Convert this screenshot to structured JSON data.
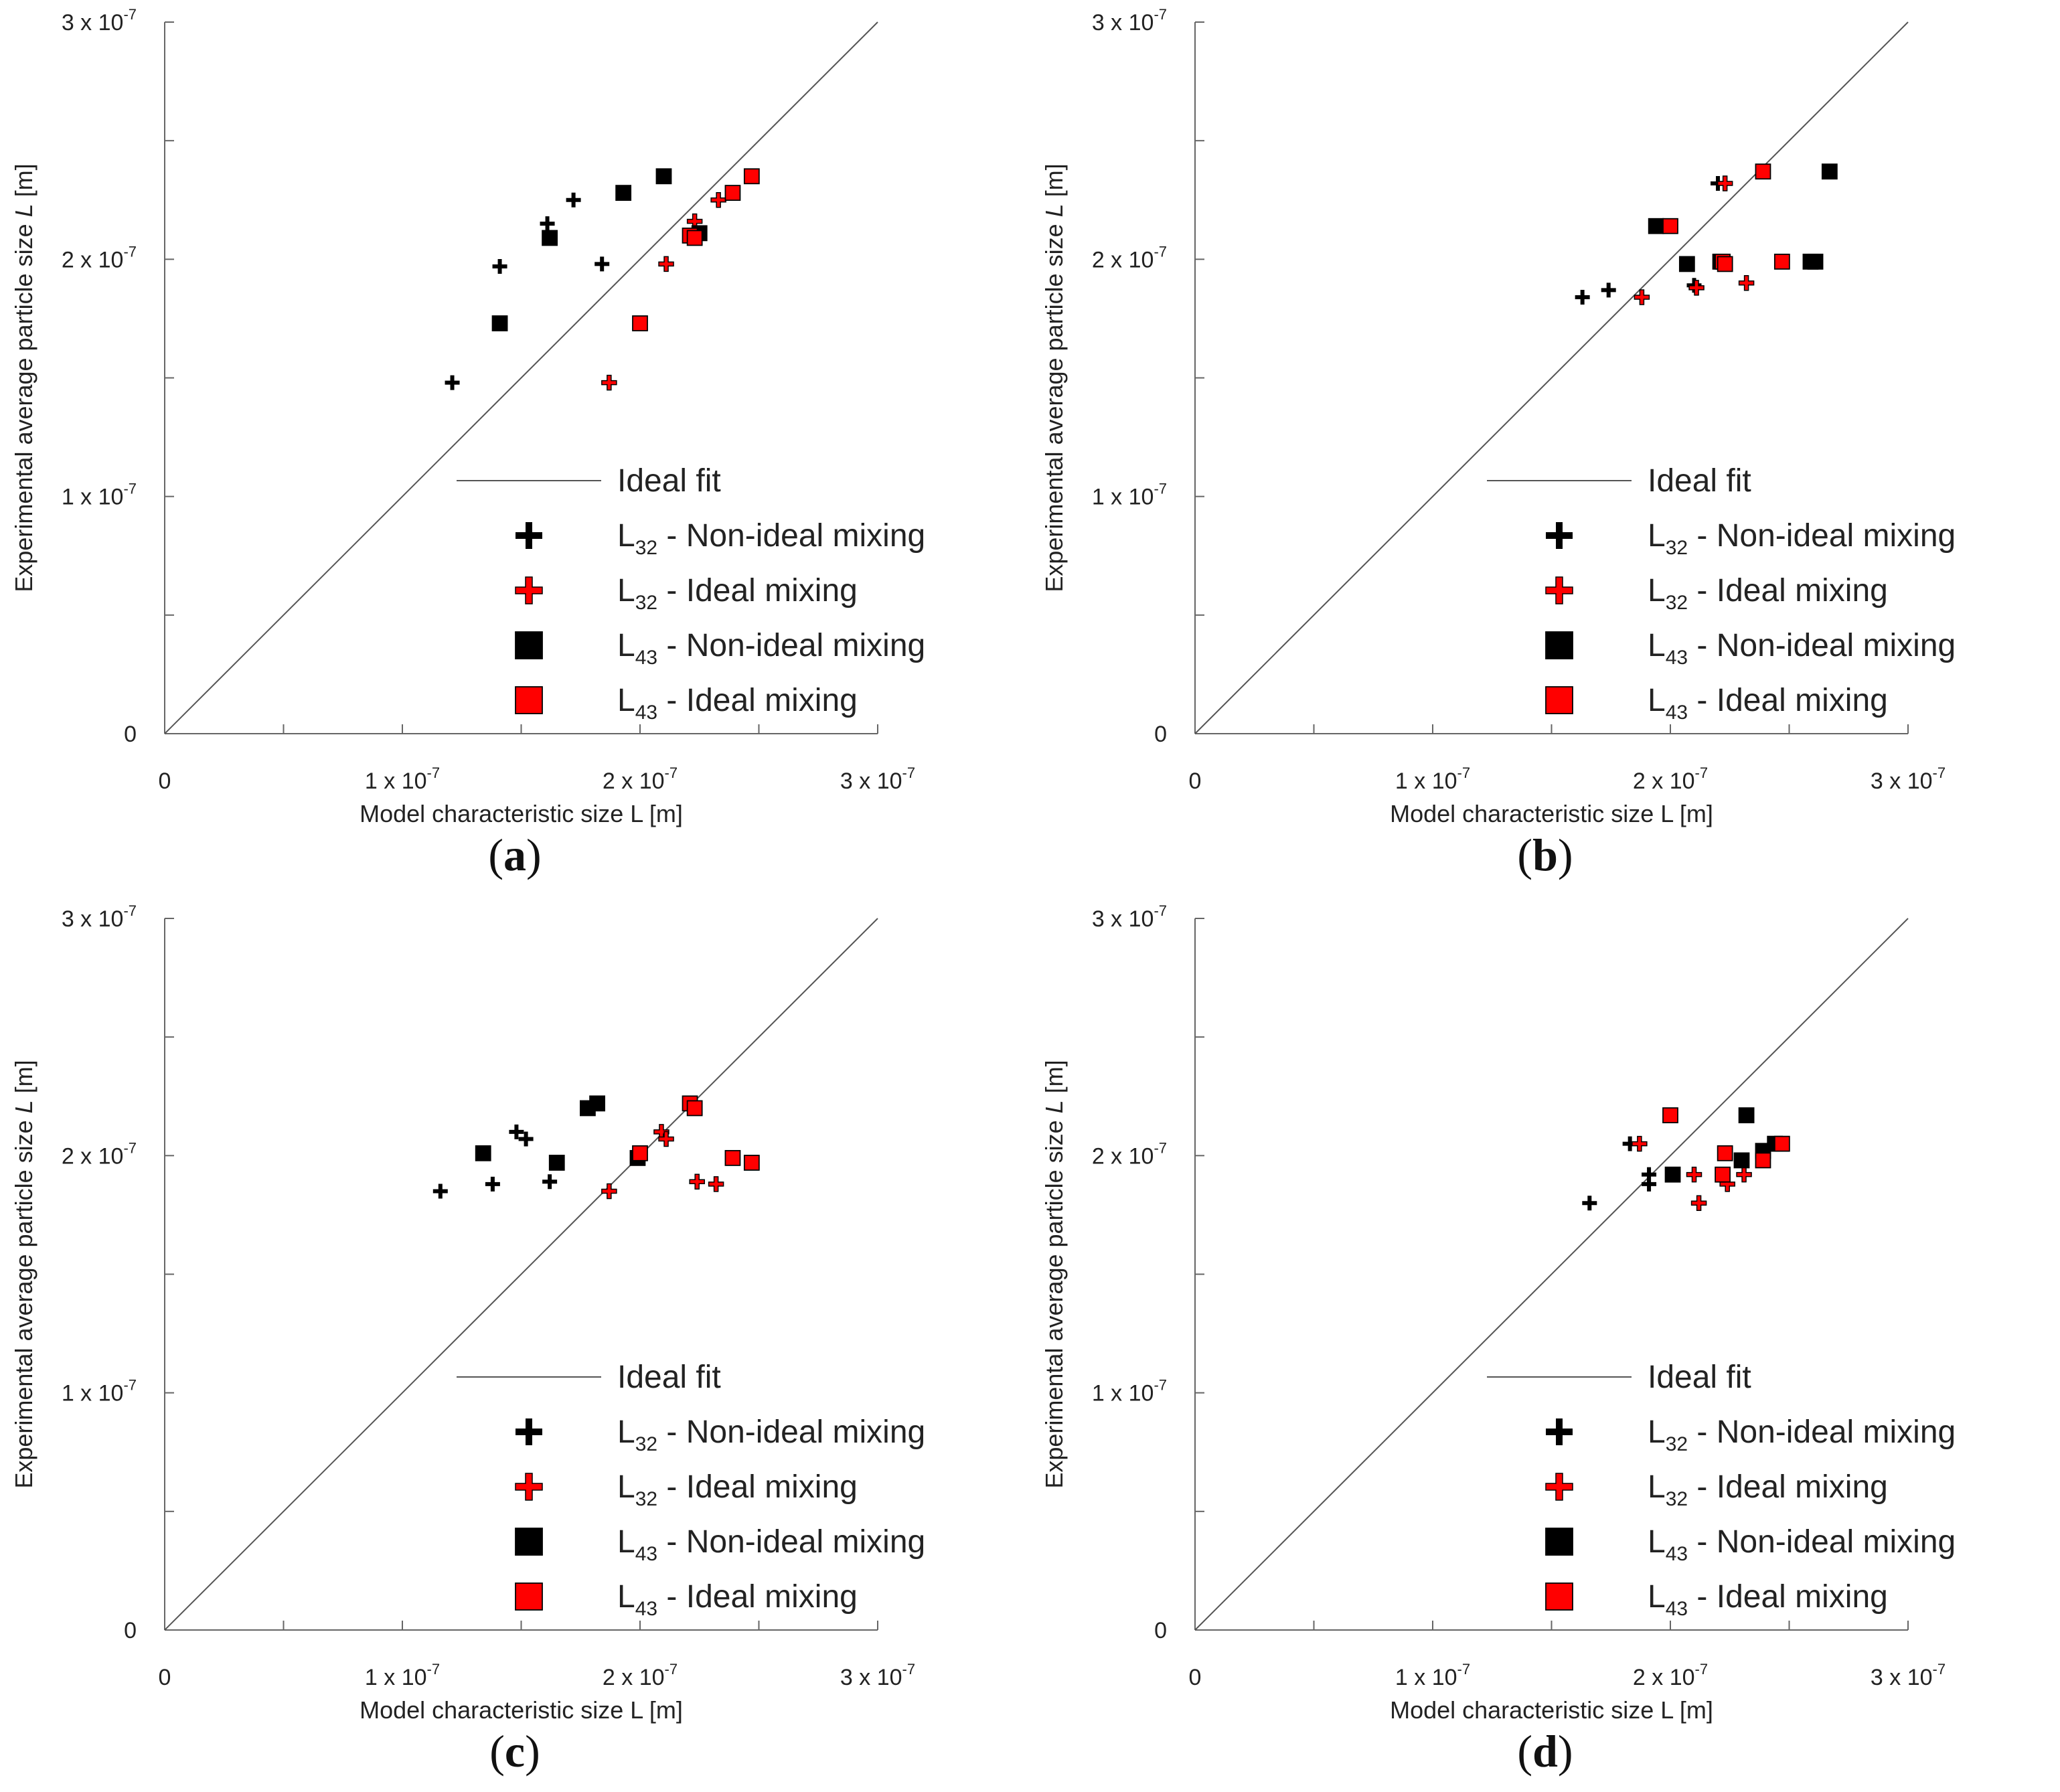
{
  "colors": {
    "non_ideal": "#000000",
    "ideal": "#ff0000",
    "fit_line": "#555555",
    "axis": "#666666"
  },
  "chart_data": [
    {
      "type": "scatter",
      "panel_label": "a",
      "xlabel": "Model characteristic size L [m]",
      "ylabel_prefix": "Experimental average particle size ",
      "ylabel_symbol": "L",
      "ylabel_suffix": " [m]",
      "xlim": [
        0,
        3e-07
      ],
      "ylim": [
        0,
        3e-07
      ],
      "x_ticks": [
        {
          "value": 0,
          "label": "0",
          "exp": ""
        },
        {
          "value": 1e-07,
          "label": "1 x 10",
          "exp": "-7"
        },
        {
          "value": 2e-07,
          "label": "2 x 10",
          "exp": "-7"
        },
        {
          "value": 3e-07,
          "label": "3 x 10",
          "exp": "-7"
        }
      ],
      "y_ticks": [
        {
          "value": 0,
          "label": "0",
          "exp": ""
        },
        {
          "value": 1e-07,
          "label": "1 x 10",
          "exp": "-7"
        },
        {
          "value": 2e-07,
          "label": "2 x 10",
          "exp": "-7"
        },
        {
          "value": 3e-07,
          "label": "3 x 10",
          "exp": "-7"
        }
      ],
      "legend": [
        {
          "marker": "line",
          "label": "Ideal fit",
          "sub": "",
          "suffix": ""
        },
        {
          "marker": "plus-black",
          "label": "L",
          "sub": "32",
          "suffix": " - Non-ideal mixing"
        },
        {
          "marker": "plus-red",
          "label": "L",
          "sub": "32",
          "suffix": " - Ideal mixing"
        },
        {
          "marker": "square-black",
          "label": "L",
          "sub": "43",
          "suffix": " - Non-ideal mixing"
        },
        {
          "marker": "square-red",
          "label": "L",
          "sub": "43",
          "suffix": " - Ideal mixing"
        }
      ],
      "series": [
        {
          "name": "L32 - Non-ideal mixing",
          "marker": "plus",
          "color": "#000000",
          "points": [
            [
              1.21e-07,
              1.48e-07
            ],
            [
              1.41e-07,
              1.97e-07
            ],
            [
              1.61e-07,
              2.15e-07
            ],
            [
              1.72e-07,
              2.25e-07
            ],
            [
              1.84e-07,
              1.98e-07
            ],
            [
              2.22e-07,
              2.1e-07
            ]
          ]
        },
        {
          "name": "L32 - Ideal mixing",
          "marker": "plus",
          "color": "#ff0000",
          "points": [
            [
              1.87e-07,
              1.48e-07
            ],
            [
              2.11e-07,
              1.98e-07
            ],
            [
              2.23e-07,
              2.16e-07
            ],
            [
              2.33e-07,
              2.25e-07
            ],
            [
              2.25e-07,
              2.1e-07
            ]
          ]
        },
        {
          "name": "L43 - Non-ideal mixing",
          "marker": "square",
          "color": "#000000",
          "points": [
            [
              1.41e-07,
              1.73e-07
            ],
            [
              1.62e-07,
              2.09e-07
            ],
            [
              1.93e-07,
              2.28e-07
            ],
            [
              2.1e-07,
              2.35e-07
            ],
            [
              2.25e-07,
              2.11e-07
            ]
          ]
        },
        {
          "name": "L43 - Ideal mixing",
          "marker": "square",
          "color": "#ff0000",
          "points": [
            [
              2e-07,
              1.73e-07
            ],
            [
              2.21e-07,
              2.1e-07
            ],
            [
              2.23e-07,
              2.09e-07
            ],
            [
              2.39e-07,
              2.28e-07
            ],
            [
              2.47e-07,
              2.35e-07
            ]
          ]
        }
      ]
    },
    {
      "type": "scatter",
      "panel_label": "b",
      "xlabel": "Model characteristic size L [m]",
      "ylabel_prefix": "Experimental average particle size ",
      "ylabel_symbol": "L",
      "ylabel_suffix": " [m]",
      "xlim": [
        0,
        3e-07
      ],
      "ylim": [
        0,
        3e-07
      ],
      "x_ticks": [
        {
          "value": 0,
          "label": "0",
          "exp": ""
        },
        {
          "value": 1e-07,
          "label": "1 x 10",
          "exp": "-7"
        },
        {
          "value": 2e-07,
          "label": "2 x 10",
          "exp": "-7"
        },
        {
          "value": 3e-07,
          "label": "3 x 10",
          "exp": "-7"
        }
      ],
      "y_ticks": [
        {
          "value": 0,
          "label": "0",
          "exp": ""
        },
        {
          "value": 1e-07,
          "label": "1 x 10",
          "exp": "-7"
        },
        {
          "value": 2e-07,
          "label": "2 x 10",
          "exp": "-7"
        },
        {
          "value": 3e-07,
          "label": "3 x 10",
          "exp": "-7"
        }
      ],
      "legend": [
        {
          "marker": "line",
          "label": "Ideal fit",
          "sub": "",
          "suffix": ""
        },
        {
          "marker": "plus-black",
          "label": "L",
          "sub": "32",
          "suffix": " - Non-ideal mixing"
        },
        {
          "marker": "plus-red",
          "label": "L",
          "sub": "32",
          "suffix": " - Ideal mixing"
        },
        {
          "marker": "square-black",
          "label": "L",
          "sub": "43",
          "suffix": " - Non-ideal mixing"
        },
        {
          "marker": "square-red",
          "label": "L",
          "sub": "43",
          "suffix": " - Ideal mixing"
        }
      ],
      "series": [
        {
          "name": "L32 - Non-ideal mixing",
          "marker": "plus",
          "color": "#000000",
          "points": [
            [
              1.63e-07,
              1.84e-07
            ],
            [
              1.74e-07,
              1.87e-07
            ],
            [
              2.1e-07,
              1.89e-07
            ],
            [
              2.2e-07,
              2.32e-07
            ]
          ]
        },
        {
          "name": "L32 - Ideal mixing",
          "marker": "plus",
          "color": "#ff0000",
          "points": [
            [
              1.88e-07,
              1.84e-07
            ],
            [
              2.11e-07,
              1.88e-07
            ],
            [
              2.23e-07,
              2.32e-07
            ],
            [
              2.32e-07,
              1.9e-07
            ]
          ]
        },
        {
          "name": "L43 - Non-ideal mixing",
          "marker": "square",
          "color": "#000000",
          "points": [
            [
              1.94e-07,
              2.14e-07
            ],
            [
              2.07e-07,
              1.98e-07
            ],
            [
              2.21e-07,
              1.99e-07
            ],
            [
              2.59e-07,
              1.99e-07
            ],
            [
              2.61e-07,
              1.99e-07
            ],
            [
              2.67e-07,
              2.37e-07
            ]
          ]
        },
        {
          "name": "L43 - Ideal mixing",
          "marker": "square",
          "color": "#ff0000",
          "points": [
            [
              2e-07,
              2.14e-07
            ],
            [
              2.22e-07,
              1.99e-07
            ],
            [
              2.23e-07,
              1.98e-07
            ],
            [
              2.39e-07,
              2.37e-07
            ],
            [
              2.47e-07,
              1.99e-07
            ]
          ]
        }
      ]
    },
    {
      "type": "scatter",
      "panel_label": "c",
      "xlabel": "Model characteristic size L [m]",
      "ylabel_prefix": "Experimental average particle size ",
      "ylabel_symbol": "L",
      "ylabel_suffix": " [m]",
      "xlim": [
        0,
        3e-07
      ],
      "ylim": [
        0,
        3e-07
      ],
      "x_ticks": [
        {
          "value": 0,
          "label": "0",
          "exp": ""
        },
        {
          "value": 1e-07,
          "label": "1 x 10",
          "exp": "-7"
        },
        {
          "value": 2e-07,
          "label": "2 x 10",
          "exp": "-7"
        },
        {
          "value": 3e-07,
          "label": "3 x 10",
          "exp": "-7"
        }
      ],
      "y_ticks": [
        {
          "value": 0,
          "label": "0",
          "exp": ""
        },
        {
          "value": 1e-07,
          "label": "1 x 10",
          "exp": "-7"
        },
        {
          "value": 2e-07,
          "label": "2 x 10",
          "exp": "-7"
        },
        {
          "value": 3e-07,
          "label": "3 x 10",
          "exp": "-7"
        }
      ],
      "legend": [
        {
          "marker": "line",
          "label": "Ideal fit",
          "sub": "",
          "suffix": ""
        },
        {
          "marker": "plus-black",
          "label": "L",
          "sub": "32",
          "suffix": " - Non-ideal mixing"
        },
        {
          "marker": "plus-red",
          "label": "L",
          "sub": "32",
          "suffix": " - Ideal mixing"
        },
        {
          "marker": "square-black",
          "label": "L",
          "sub": "43",
          "suffix": " - Non-ideal mixing"
        },
        {
          "marker": "square-red",
          "label": "L",
          "sub": "43",
          "suffix": " - Ideal mixing"
        }
      ],
      "series": [
        {
          "name": "L32 - Non-ideal mixing",
          "marker": "plus",
          "color": "#000000",
          "points": [
            [
              1.16e-07,
              1.85e-07
            ],
            [
              1.38e-07,
              1.88e-07
            ],
            [
              1.48e-07,
              2.1e-07
            ],
            [
              1.52e-07,
              2.07e-07
            ],
            [
              1.62e-07,
              1.89e-07
            ]
          ]
        },
        {
          "name": "L32 - Ideal mixing",
          "marker": "plus",
          "color": "#ff0000",
          "points": [
            [
              1.87e-07,
              1.85e-07
            ],
            [
              2.09e-07,
              2.1e-07
            ],
            [
              2.11e-07,
              2.07e-07
            ],
            [
              2.24e-07,
              1.89e-07
            ],
            [
              2.32e-07,
              1.88e-07
            ]
          ]
        },
        {
          "name": "L43 - Non-ideal mixing",
          "marker": "square",
          "color": "#000000",
          "points": [
            [
              1.34e-07,
              2.01e-07
            ],
            [
              1.65e-07,
              1.97e-07
            ],
            [
              1.78e-07,
              2.2e-07
            ],
            [
              1.82e-07,
              2.22e-07
            ],
            [
              1.99e-07,
              1.99e-07
            ]
          ]
        },
        {
          "name": "L43 - Ideal mixing",
          "marker": "square",
          "color": "#ff0000",
          "points": [
            [
              2e-07,
              2.01e-07
            ],
            [
              2.21e-07,
              2.22e-07
            ],
            [
              2.23e-07,
              2.2e-07
            ],
            [
              2.39e-07,
              1.99e-07
            ],
            [
              2.47e-07,
              1.97e-07
            ]
          ]
        }
      ]
    },
    {
      "type": "scatter",
      "panel_label": "d",
      "xlabel": "Model characteristic size L [m]",
      "ylabel_prefix": "Experimental average particle size ",
      "ylabel_symbol": "L",
      "ylabel_suffix": " [m]",
      "xlim": [
        0,
        3e-07
      ],
      "ylim": [
        0,
        3e-07
      ],
      "x_ticks": [
        {
          "value": 0,
          "label": "0",
          "exp": ""
        },
        {
          "value": 1e-07,
          "label": "1 x 10",
          "exp": "-7"
        },
        {
          "value": 2e-07,
          "label": "2 x 10",
          "exp": "-7"
        },
        {
          "value": 3e-07,
          "label": "3 x 10",
          "exp": "-7"
        }
      ],
      "y_ticks": [
        {
          "value": 0,
          "label": "0",
          "exp": ""
        },
        {
          "value": 1e-07,
          "label": "1 x 10",
          "exp": "-7"
        },
        {
          "value": 2e-07,
          "label": "2 x 10",
          "exp": "-7"
        },
        {
          "value": 3e-07,
          "label": "3 x 10",
          "exp": "-7"
        }
      ],
      "legend": [
        {
          "marker": "line",
          "label": "Ideal fit",
          "sub": "",
          "suffix": ""
        },
        {
          "marker": "plus-black",
          "label": "L",
          "sub": "32",
          "suffix": " - Non-ideal mixing"
        },
        {
          "marker": "plus-red",
          "label": "L",
          "sub": "32",
          "suffix": " - Ideal mixing"
        },
        {
          "marker": "square-black",
          "label": "L",
          "sub": "43",
          "suffix": " - Non-ideal mixing"
        },
        {
          "marker": "square-red",
          "label": "L",
          "sub": "43",
          "suffix": " - Ideal mixing"
        }
      ],
      "series": [
        {
          "name": "L32 - Non-ideal mixing",
          "marker": "plus",
          "color": "#000000",
          "points": [
            [
              1.66e-07,
              1.8e-07
            ],
            [
              1.83e-07,
              2.05e-07
            ],
            [
              1.91e-07,
              1.88e-07
            ],
            [
              1.91e-07,
              1.92e-07
            ],
            [
              2.01e-07,
              1.92e-07
            ]
          ]
        },
        {
          "name": "L32 - Ideal mixing",
          "marker": "plus",
          "color": "#ff0000",
          "points": [
            [
              1.87e-07,
              2.05e-07
            ],
            [
              2.1e-07,
              1.92e-07
            ],
            [
              2.12e-07,
              1.8e-07
            ],
            [
              2.24e-07,
              1.88e-07
            ],
            [
              2.31e-07,
              1.92e-07
            ]
          ]
        },
        {
          "name": "L43 - Non-ideal mixing",
          "marker": "square",
          "color": "#000000",
          "points": [
            [
              2.01e-07,
              1.92e-07
            ],
            [
              2.3e-07,
              1.98e-07
            ],
            [
              2.32e-07,
              2.17e-07
            ],
            [
              2.39e-07,
              2.02e-07
            ],
            [
              2.44e-07,
              2.05e-07
            ]
          ]
        },
        {
          "name": "L43 - Ideal mixing",
          "marker": "square",
          "color": "#ff0000",
          "points": [
            [
              2e-07,
              2.17e-07
            ],
            [
              2.22e-07,
              1.92e-07
            ],
            [
              2.23e-07,
              2.01e-07
            ],
            [
              2.39e-07,
              1.98e-07
            ],
            [
              2.47e-07,
              2.05e-07
            ]
          ]
        }
      ]
    }
  ]
}
